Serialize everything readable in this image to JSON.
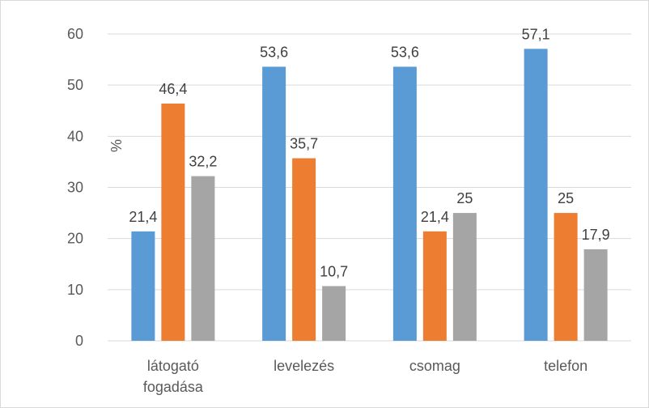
{
  "chart_data": {
    "type": "bar",
    "categories": [
      [
        "látogató",
        "fogadása"
      ],
      [
        "levelezés"
      ],
      [
        "csomag"
      ],
      [
        "telefon"
      ]
    ],
    "series": [
      {
        "values": [
          21.4,
          53.6,
          53.6,
          57.1
        ],
        "labels": [
          "21,4",
          "53,6",
          "53,6",
          "57,1"
        ],
        "color": "#5b9bd5"
      },
      {
        "values": [
          46.4,
          35.7,
          21.4,
          25
        ],
        "labels": [
          "46,4",
          "35,7",
          "21,4",
          "25"
        ],
        "color": "#ed7d31"
      },
      {
        "values": [
          32.2,
          10.7,
          25,
          17.9
        ],
        "labels": [
          "32,2",
          "10,7",
          "25",
          "17,9"
        ],
        "color": "#a5a5a5"
      }
    ],
    "ylabel": "%",
    "ylim": [
      0,
      60
    ],
    "yticks": [
      "0",
      "10",
      "20",
      "30",
      "40",
      "50",
      "60"
    ],
    "grid": true,
    "gridline_color": "#d9d9d9"
  }
}
